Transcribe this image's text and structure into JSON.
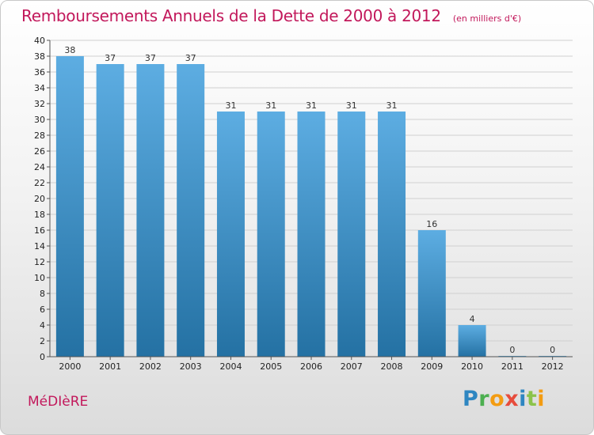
{
  "header": {
    "title": "Remboursements Annuels de la Dette de 2000 à 2012",
    "subtitle": "(en milliers d'€)"
  },
  "footer": {
    "town": "MéDIèRE",
    "logo_letters": [
      {
        "char": "P",
        "color": "#2e86c1"
      },
      {
        "char": "r",
        "color": "#4caf50"
      },
      {
        "char": "o",
        "color": "#f39c12"
      },
      {
        "char": "x",
        "color": "#e74c3c"
      },
      {
        "char": "i",
        "color": "#2e86c1"
      },
      {
        "char": "t",
        "color": "#8bc34a"
      },
      {
        "char": "i",
        "color": "#f39c12"
      }
    ]
  },
  "colors": {
    "title": "#c2185b",
    "bar_light": "#5dade2",
    "bar_dark": "#2471a3"
  },
  "chart_data": {
    "type": "bar",
    "categories": [
      "2000",
      "2001",
      "2002",
      "2003",
      "2004",
      "2005",
      "2006",
      "2007",
      "2008",
      "2009",
      "2010",
      "2011",
      "2012"
    ],
    "values": [
      38,
      37,
      37,
      37,
      31,
      31,
      31,
      31,
      31,
      16,
      4,
      0,
      0
    ],
    "ylim": [
      0,
      40
    ],
    "yticks": [
      0,
      2,
      4,
      6,
      8,
      10,
      12,
      14,
      16,
      18,
      20,
      22,
      24,
      26,
      28,
      30,
      32,
      34,
      36,
      38,
      40
    ],
    "grid": true
  }
}
